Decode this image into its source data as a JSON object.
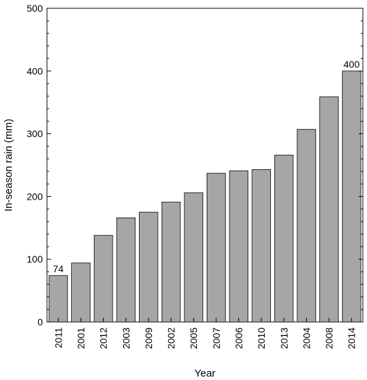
{
  "chart_data": {
    "type": "bar",
    "title": "",
    "xlabel": "Year",
    "ylabel": "In-season rain (mm)",
    "ylim": [
      0,
      500
    ],
    "yticks": [
      0,
      100,
      200,
      300,
      400,
      500
    ],
    "categories": [
      "2011",
      "2001",
      "2012",
      "2003",
      "2009",
      "2002",
      "2005",
      "2007",
      "2006",
      "2010",
      "2013",
      "2004",
      "2008",
      "2014"
    ],
    "values": [
      74,
      94,
      138,
      166,
      175,
      191,
      206,
      237,
      241,
      243,
      266,
      307,
      359,
      400
    ],
    "data_labels": [
      {
        "category": "2011",
        "text": "74"
      },
      {
        "category": "2014",
        "text": "400"
      }
    ],
    "bar_color": "#a6a6a6",
    "grid": false,
    "x_tick_rotation": "vertical"
  }
}
